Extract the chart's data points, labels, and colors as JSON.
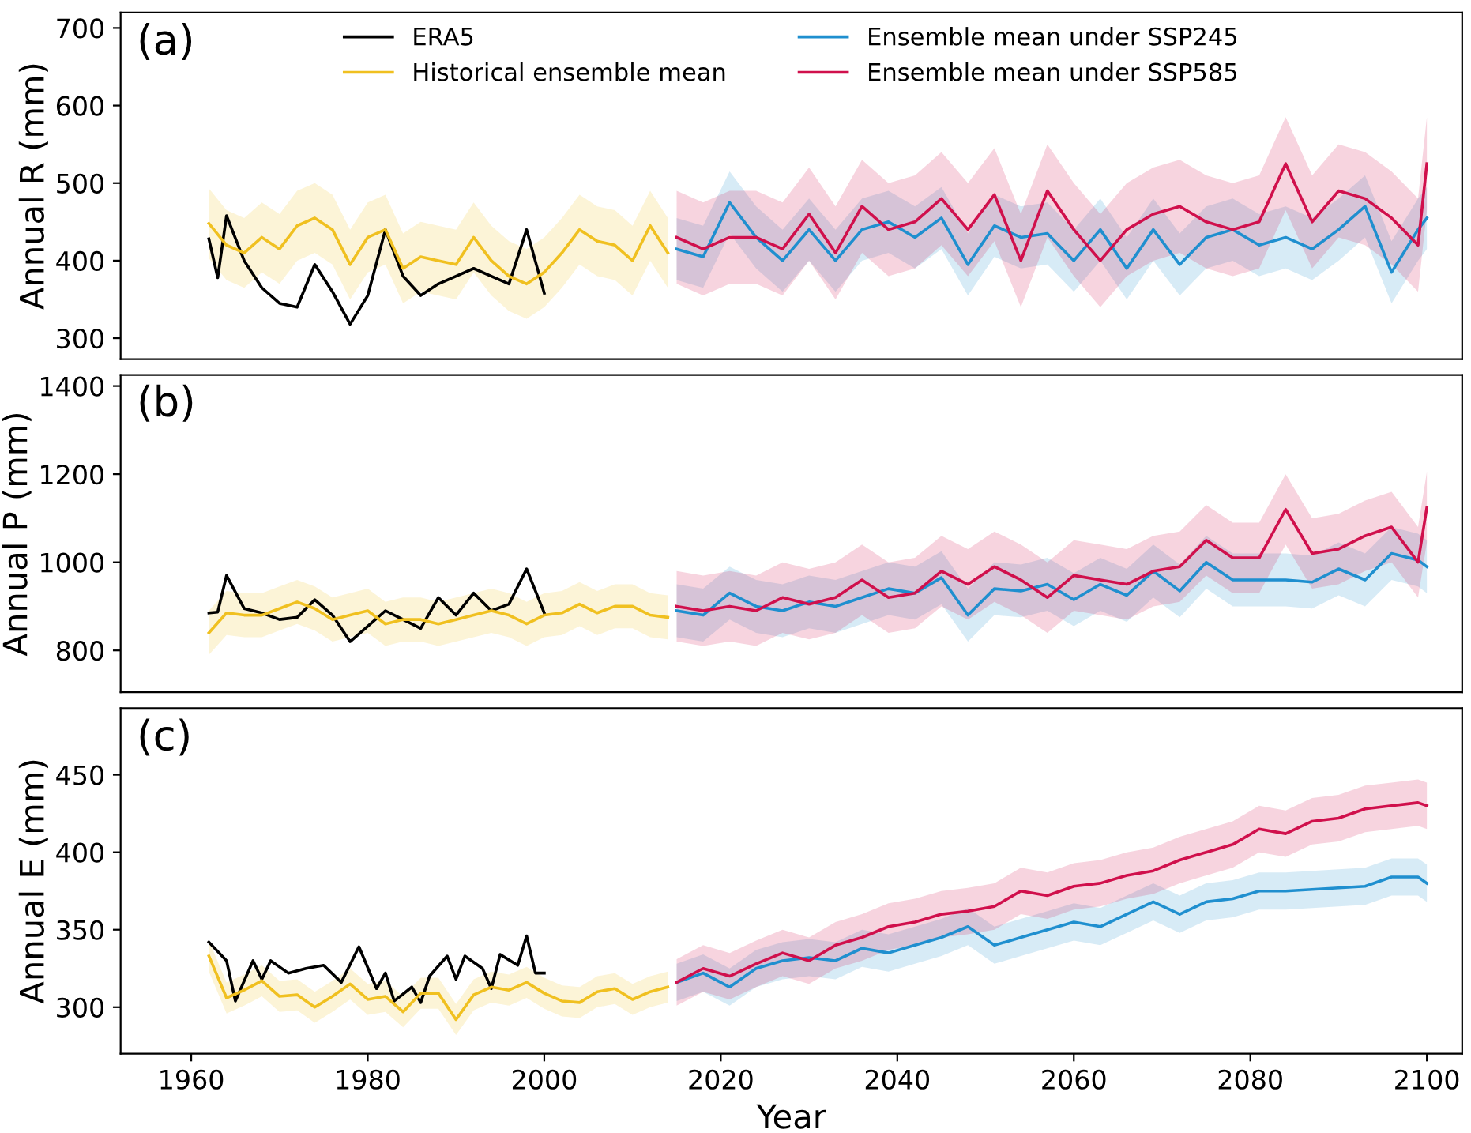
{
  "chart_data": [
    {
      "type": "line",
      "ylabel": "Annual R (mm)",
      "annotations": [
        "(a)"
      ],
      "xlim": [
        1952,
        2104
      ],
      "xticks": [
        1960,
        1980,
        2000,
        2020,
        2040,
        2060,
        2080,
        2100
      ],
      "ylim": [
        273,
        720
      ],
      "yticks": [
        300,
        400,
        500,
        600,
        700
      ],
      "tick_labels": "y",
      "legend": "top",
      "grid": false,
      "series": [
        {
          "name": "ERA5",
          "color": "#000000",
          "x": [
            1962,
            1963,
            1964,
            1966,
            1968,
            1970,
            1972,
            1974,
            1976,
            1978,
            1980,
            1982,
            1984,
            1986,
            1988,
            1990,
            1992,
            1994,
            1996,
            1998,
            2000
          ],
          "values": [
            428,
            378,
            458,
            400,
            365,
            345,
            340,
            395,
            360,
            318,
            355,
            440,
            380,
            355,
            370,
            380,
            390,
            380,
            370,
            440,
            358
          ]
        },
        {
          "name": "Historical ensemble mean",
          "color": "#f0c020",
          "x": [
            1962,
            1964,
            1966,
            1968,
            1970,
            1972,
            1974,
            1976,
            1978,
            1980,
            1982,
            1984,
            1986,
            1988,
            1990,
            1992,
            1994,
            1996,
            1998,
            2000,
            2002,
            2004,
            2006,
            2008,
            2010,
            2012,
            2014
          ],
          "values": [
            448,
            420,
            410,
            430,
            415,
            445,
            455,
            440,
            395,
            430,
            440,
            390,
            405,
            400,
            395,
            430,
            400,
            380,
            370,
            385,
            410,
            440,
            425,
            420,
            400,
            445,
            410
          ],
          "lower": [
            403,
            375,
            365,
            385,
            370,
            400,
            410,
            395,
            350,
            385,
            395,
            345,
            360,
            355,
            350,
            385,
            355,
            335,
            325,
            340,
            365,
            395,
            380,
            375,
            355,
            400,
            365
          ],
          "upper": [
            493,
            465,
            455,
            475,
            460,
            490,
            500,
            485,
            440,
            475,
            485,
            435,
            450,
            445,
            440,
            475,
            445,
            425,
            415,
            430,
            455,
            485,
            470,
            465,
            445,
            490,
            455
          ]
        },
        {
          "name": "Ensemble mean under SSP245",
          "color": "#1f8fcf",
          "x": [
            2015,
            2018,
            2021,
            2024,
            2027,
            2030,
            2033,
            2036,
            2039,
            2042,
            2045,
            2048,
            2051,
            2054,
            2057,
            2060,
            2063,
            2066,
            2069,
            2072,
            2075,
            2078,
            2081,
            2084,
            2087,
            2090,
            2093,
            2096,
            2099,
            2100
          ],
          "values": [
            415,
            405,
            475,
            430,
            400,
            440,
            400,
            440,
            450,
            430,
            455,
            395,
            445,
            430,
            435,
            400,
            440,
            390,
            440,
            395,
            430,
            440,
            420,
            430,
            415,
            440,
            470,
            385,
            440,
            455
          ],
          "lower": [
            375,
            365,
            435,
            390,
            360,
            400,
            360,
            400,
            410,
            390,
            415,
            355,
            405,
            390,
            395,
            360,
            400,
            350,
            400,
            355,
            390,
            400,
            380,
            390,
            375,
            400,
            430,
            345,
            400,
            415
          ],
          "upper": [
            455,
            445,
            515,
            470,
            440,
            480,
            440,
            480,
            490,
            470,
            495,
            435,
            485,
            470,
            475,
            440,
            480,
            430,
            480,
            435,
            470,
            480,
            460,
            470,
            455,
            480,
            510,
            425,
            480,
            495
          ]
        },
        {
          "name": "Ensemble mean under SSP585",
          "color": "#d0104c",
          "x": [
            2015,
            2018,
            2021,
            2024,
            2027,
            2030,
            2033,
            2036,
            2039,
            2042,
            2045,
            2048,
            2051,
            2054,
            2057,
            2060,
            2063,
            2066,
            2069,
            2072,
            2075,
            2078,
            2081,
            2084,
            2087,
            2090,
            2093,
            2096,
            2099,
            2100
          ],
          "values": [
            430,
            415,
            430,
            430,
            415,
            460,
            410,
            470,
            440,
            450,
            480,
            440,
            485,
            400,
            490,
            440,
            400,
            440,
            460,
            470,
            450,
            440,
            450,
            525,
            450,
            490,
            480,
            455,
            420,
            525
          ],
          "lower": [
            370,
            355,
            370,
            370,
            355,
            400,
            350,
            410,
            380,
            390,
            420,
            380,
            425,
            340,
            430,
            380,
            340,
            380,
            400,
            410,
            390,
            380,
            390,
            465,
            390,
            430,
            420,
            395,
            360,
            465
          ],
          "upper": [
            490,
            475,
            490,
            490,
            475,
            520,
            470,
            530,
            500,
            510,
            540,
            500,
            545,
            460,
            550,
            500,
            460,
            500,
            520,
            530,
            510,
            500,
            510,
            585,
            510,
            550,
            540,
            515,
            480,
            585
          ]
        }
      ]
    },
    {
      "type": "line",
      "ylabel": "Annual P (mm)",
      "annotations": [
        "(b)"
      ],
      "xlim": [
        1952,
        2104
      ],
      "xticks": [
        1960,
        1980,
        2000,
        2020,
        2040,
        2060,
        2080,
        2100
      ],
      "ylim": [
        705,
        1425
      ],
      "yticks": [
        800,
        1000,
        1200,
        1400
      ],
      "tick_labels": "y",
      "grid": false,
      "series": [
        {
          "color": "#000000",
          "x": [
            1962,
            1963,
            1964,
            1966,
            1968,
            1970,
            1972,
            1974,
            1976,
            1978,
            1980,
            1982,
            1984,
            1986,
            1988,
            1990,
            1992,
            1994,
            1996,
            1998,
            2000
          ],
          "values": [
            885,
            887,
            970,
            895,
            885,
            870,
            875,
            915,
            880,
            820,
            855,
            890,
            870,
            850,
            920,
            880,
            930,
            890,
            905,
            985,
            885
          ]
        },
        {
          "color": "#f0c020",
          "x": [
            1962,
            1964,
            1966,
            1968,
            1970,
            1972,
            1974,
            1976,
            1978,
            1980,
            1982,
            1984,
            1986,
            1988,
            1990,
            1992,
            1994,
            1996,
            1998,
            2000,
            2002,
            2004,
            2006,
            2008,
            2010,
            2012,
            2014
          ],
          "values": [
            840,
            885,
            880,
            880,
            895,
            910,
            895,
            870,
            880,
            890,
            860,
            870,
            870,
            860,
            870,
            880,
            890,
            880,
            860,
            880,
            885,
            905,
            885,
            900,
            900,
            880,
            875
          ],
          "lower": [
            790,
            835,
            830,
            830,
            845,
            860,
            845,
            820,
            830,
            840,
            810,
            820,
            820,
            810,
            820,
            830,
            840,
            830,
            810,
            830,
            835,
            855,
            835,
            850,
            850,
            830,
            825
          ],
          "upper": [
            890,
            935,
            930,
            930,
            945,
            960,
            945,
            920,
            930,
            940,
            910,
            920,
            920,
            910,
            920,
            930,
            940,
            930,
            910,
            930,
            935,
            955,
            935,
            950,
            950,
            930,
            925
          ]
        },
        {
          "color": "#1f8fcf",
          "x": [
            2015,
            2018,
            2021,
            2024,
            2027,
            2030,
            2033,
            2036,
            2039,
            2042,
            2045,
            2048,
            2051,
            2054,
            2057,
            2060,
            2063,
            2066,
            2069,
            2072,
            2075,
            2078,
            2081,
            2084,
            2087,
            2090,
            2093,
            2096,
            2099,
            2100
          ],
          "values": [
            890,
            880,
            930,
            900,
            890,
            910,
            900,
            920,
            940,
            930,
            965,
            880,
            940,
            935,
            950,
            915,
            950,
            925,
            980,
            935,
            1000,
            960,
            960,
            960,
            955,
            985,
            960,
            1020,
            1005,
            990
          ],
          "lower": [
            830,
            820,
            870,
            840,
            830,
            850,
            840,
            860,
            880,
            870,
            905,
            820,
            880,
            875,
            890,
            855,
            890,
            865,
            920,
            875,
            940,
            900,
            900,
            900,
            895,
            925,
            900,
            960,
            945,
            930
          ],
          "upper": [
            950,
            940,
            990,
            960,
            950,
            970,
            960,
            980,
            1000,
            990,
            1025,
            940,
            1000,
            995,
            1010,
            975,
            1010,
            985,
            1040,
            995,
            1060,
            1020,
            1020,
            1020,
            1015,
            1045,
            1020,
            1080,
            1065,
            1050
          ]
        },
        {
          "color": "#d0104c",
          "x": [
            2015,
            2018,
            2021,
            2024,
            2027,
            2030,
            2033,
            2036,
            2039,
            2042,
            2045,
            2048,
            2051,
            2054,
            2057,
            2060,
            2063,
            2066,
            2069,
            2072,
            2075,
            2078,
            2081,
            2084,
            2087,
            2090,
            2093,
            2096,
            2099,
            2100
          ],
          "values": [
            900,
            890,
            900,
            890,
            920,
            905,
            920,
            960,
            920,
            930,
            980,
            950,
            990,
            960,
            920,
            970,
            960,
            950,
            980,
            990,
            1050,
            1010,
            1010,
            1120,
            1020,
            1030,
            1060,
            1080,
            1000,
            1125
          ],
          "lower": [
            820,
            810,
            820,
            810,
            840,
            825,
            840,
            880,
            840,
            850,
            900,
            870,
            910,
            880,
            840,
            890,
            880,
            870,
            900,
            910,
            970,
            930,
            930,
            1040,
            940,
            950,
            980,
            1000,
            920,
            1045
          ],
          "upper": [
            980,
            970,
            980,
            970,
            1000,
            985,
            1000,
            1040,
            1000,
            1010,
            1060,
            1030,
            1070,
            1040,
            1000,
            1050,
            1040,
            1030,
            1060,
            1070,
            1130,
            1090,
            1090,
            1200,
            1100,
            1110,
            1140,
            1160,
            1080,
            1205
          ]
        }
      ]
    },
    {
      "type": "line",
      "xlabel": "Year",
      "ylabel": "Annual E (mm)",
      "annotations": [
        "(c)"
      ],
      "xlim": [
        1952,
        2104
      ],
      "xticks": [
        1960,
        1980,
        2000,
        2020,
        2040,
        2060,
        2080,
        2100
      ],
      "ylim": [
        270,
        493
      ],
      "yticks": [
        300,
        350,
        400,
        450
      ],
      "grid": false,
      "series": [
        {
          "color": "#000000",
          "x": [
            1962,
            1964,
            1965,
            1967,
            1968,
            1969,
            1971,
            1973,
            1975,
            1977,
            1979,
            1981,
            1982,
            1983,
            1985,
            1986,
            1987,
            1989,
            1990,
            1991,
            1993,
            1994,
            1995,
            1997,
            1998,
            1999,
            2000
          ],
          "values": [
            342,
            330,
            304,
            330,
            318,
            330,
            322,
            325,
            327,
            316,
            339,
            312,
            322,
            304,
            313,
            303,
            320,
            333,
            318,
            333,
            325,
            312,
            334,
            327,
            346,
            322,
            322
          ]
        },
        {
          "color": "#f0c020",
          "x": [
            1962,
            1964,
            1966,
            1968,
            1970,
            1972,
            1974,
            1976,
            1978,
            1980,
            1982,
            1984,
            1986,
            1988,
            1990,
            1992,
            1994,
            1996,
            1998,
            2000,
            2002,
            2004,
            2006,
            2008,
            2010,
            2012,
            2014
          ],
          "values": [
            333,
            306,
            311,
            317,
            307,
            308,
            300,
            307,
            315,
            305,
            307,
            297,
            309,
            309,
            292,
            308,
            313,
            311,
            316,
            309,
            304,
            303,
            310,
            312,
            305,
            310,
            313
          ],
          "lower": [
            323,
            296,
            301,
            307,
            297,
            298,
            290,
            297,
            305,
            295,
            297,
            287,
            299,
            299,
            282,
            298,
            303,
            301,
            306,
            299,
            294,
            293,
            300,
            302,
            295,
            300,
            303
          ],
          "upper": [
            343,
            316,
            321,
            327,
            317,
            318,
            310,
            317,
            325,
            315,
            317,
            307,
            319,
            319,
            302,
            318,
            323,
            321,
            326,
            319,
            314,
            313,
            320,
            322,
            315,
            320,
            323
          ]
        },
        {
          "color": "#1f8fcf",
          "x": [
            2015,
            2018,
            2021,
            2024,
            2027,
            2030,
            2033,
            2036,
            2039,
            2042,
            2045,
            2048,
            2051,
            2054,
            2057,
            2060,
            2063,
            2066,
            2069,
            2072,
            2075,
            2078,
            2081,
            2084,
            2087,
            2090,
            2093,
            2096,
            2099,
            2100
          ],
          "values": [
            316,
            322,
            313,
            325,
            330,
            332,
            330,
            338,
            335,
            340,
            345,
            352,
            340,
            345,
            350,
            355,
            352,
            360,
            368,
            360,
            368,
            370,
            375,
            375,
            376,
            377,
            378,
            384,
            384,
            380
          ],
          "lower": [
            304,
            310,
            301,
            313,
            318,
            320,
            318,
            326,
            323,
            328,
            333,
            340,
            328,
            333,
            338,
            343,
            340,
            348,
            356,
            348,
            356,
            358,
            363,
            363,
            364,
            365,
            366,
            372,
            372,
            368
          ],
          "upper": [
            328,
            334,
            325,
            337,
            342,
            344,
            342,
            350,
            347,
            352,
            357,
            364,
            352,
            357,
            362,
            367,
            364,
            372,
            380,
            372,
            380,
            382,
            387,
            387,
            388,
            389,
            390,
            396,
            396,
            392
          ]
        },
        {
          "color": "#d0104c",
          "x": [
            2015,
            2018,
            2021,
            2024,
            2027,
            2030,
            2033,
            2036,
            2039,
            2042,
            2045,
            2048,
            2051,
            2054,
            2057,
            2060,
            2063,
            2066,
            2069,
            2072,
            2075,
            2078,
            2081,
            2084,
            2087,
            2090,
            2093,
            2096,
            2099,
            2100
          ],
          "values": [
            316,
            325,
            320,
            328,
            335,
            330,
            340,
            345,
            352,
            355,
            360,
            362,
            365,
            375,
            372,
            378,
            380,
            385,
            388,
            395,
            400,
            405,
            415,
            412,
            420,
            422,
            428,
            430,
            432,
            430
          ],
          "lower": [
            301,
            310,
            305,
            313,
            320,
            315,
            325,
            330,
            337,
            340,
            345,
            347,
            350,
            360,
            357,
            363,
            365,
            370,
            373,
            380,
            385,
            390,
            400,
            397,
            405,
            407,
            413,
            415,
            417,
            415
          ],
          "upper": [
            331,
            340,
            335,
            343,
            350,
            345,
            355,
            360,
            367,
            370,
            375,
            377,
            380,
            390,
            387,
            393,
            395,
            400,
            403,
            410,
            415,
            420,
            430,
            427,
            435,
            437,
            443,
            445,
            447,
            445
          ]
        }
      ]
    }
  ]
}
